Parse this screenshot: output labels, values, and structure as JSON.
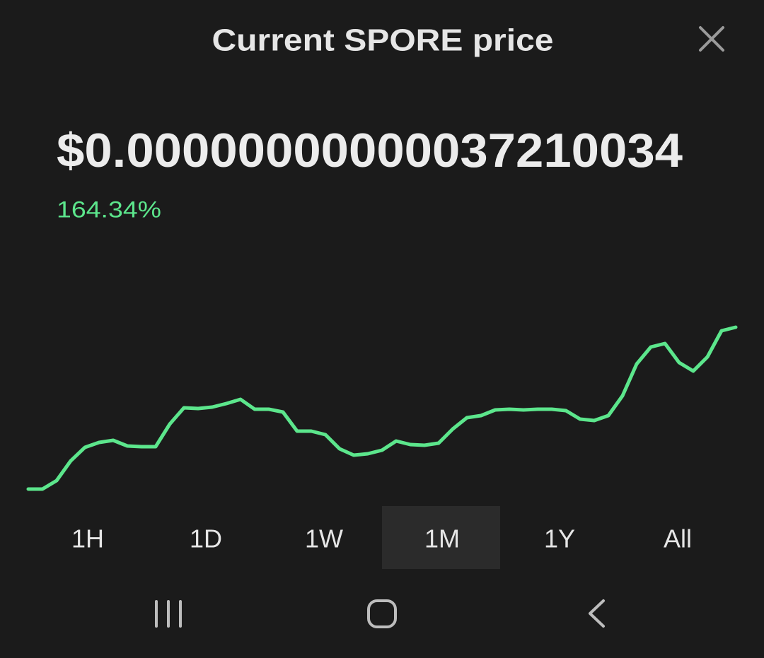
{
  "header": {
    "title": "Current SPORE price"
  },
  "price": "$0.00000000000037210034",
  "change": "164.34%",
  "chart_data": {
    "type": "line",
    "color": "#5ce68c",
    "values": [
      8,
      8,
      20,
      48,
      67,
      74,
      77,
      69,
      68,
      68,
      100,
      123,
      122,
      124,
      129,
      135,
      121,
      121,
      117,
      90,
      90,
      85,
      65,
      56,
      58,
      63,
      76,
      71,
      70,
      73,
      93,
      109,
      112,
      120,
      121,
      120,
      121,
      121,
      119,
      107,
      105,
      112,
      140,
      185,
      209,
      214,
      187,
      175,
      195,
      232,
      237
    ]
  },
  "tabs": [
    "1H",
    "1D",
    "1W",
    "1M",
    "1Y",
    "All"
  ]
}
